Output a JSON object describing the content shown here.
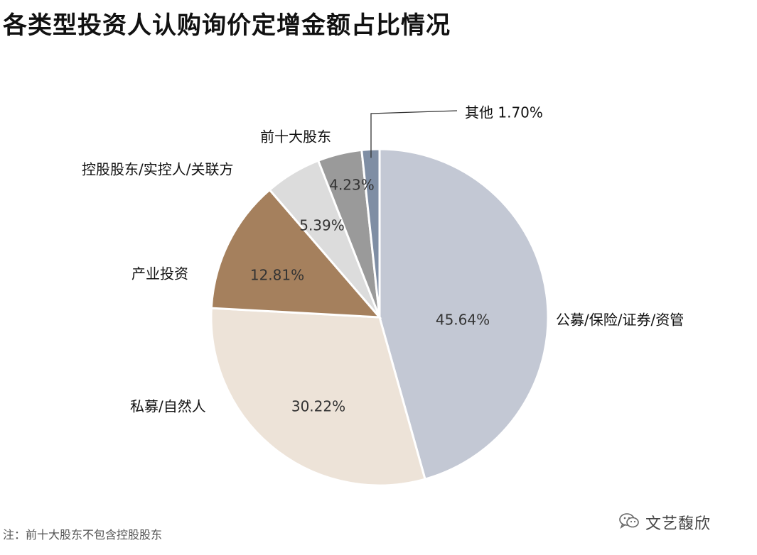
{
  "title": "各类型投资人认购询价定增金额占比情况",
  "note": "注：前十大股东不包含控股股东",
  "watermark": {
    "text": "文艺馥欣",
    "icon": "wechat-icon"
  },
  "chart_data": {
    "type": "pie",
    "title": "各类型投资人认购询价定增金额占比情况",
    "start": "12 o'clock",
    "direction": "clockwise",
    "slices": [
      {
        "label": "公募/保险/证券/资管",
        "value": 45.64,
        "value_label": "45.64%",
        "color": "#c3c8d4"
      },
      {
        "label": "私募/自然人",
        "value": 30.22,
        "value_label": "30.22%",
        "color": "#ede3d8"
      },
      {
        "label": "产业投资",
        "value": 12.81,
        "value_label": "12.81%",
        "color": "#a5805d"
      },
      {
        "label": "控股股东/实控人/关联方",
        "value": 5.39,
        "value_label": "5.39%",
        "color": "#dcdcdc"
      },
      {
        "label": "前十大股东",
        "value": 4.23,
        "value_label": "4.23%",
        "color": "#9a9a9a"
      },
      {
        "label": "其他",
        "value": 1.7,
        "value_label": "1.70%",
        "color": "#7f8ea4"
      }
    ],
    "callout": {
      "text": "其他 1.70%"
    }
  }
}
